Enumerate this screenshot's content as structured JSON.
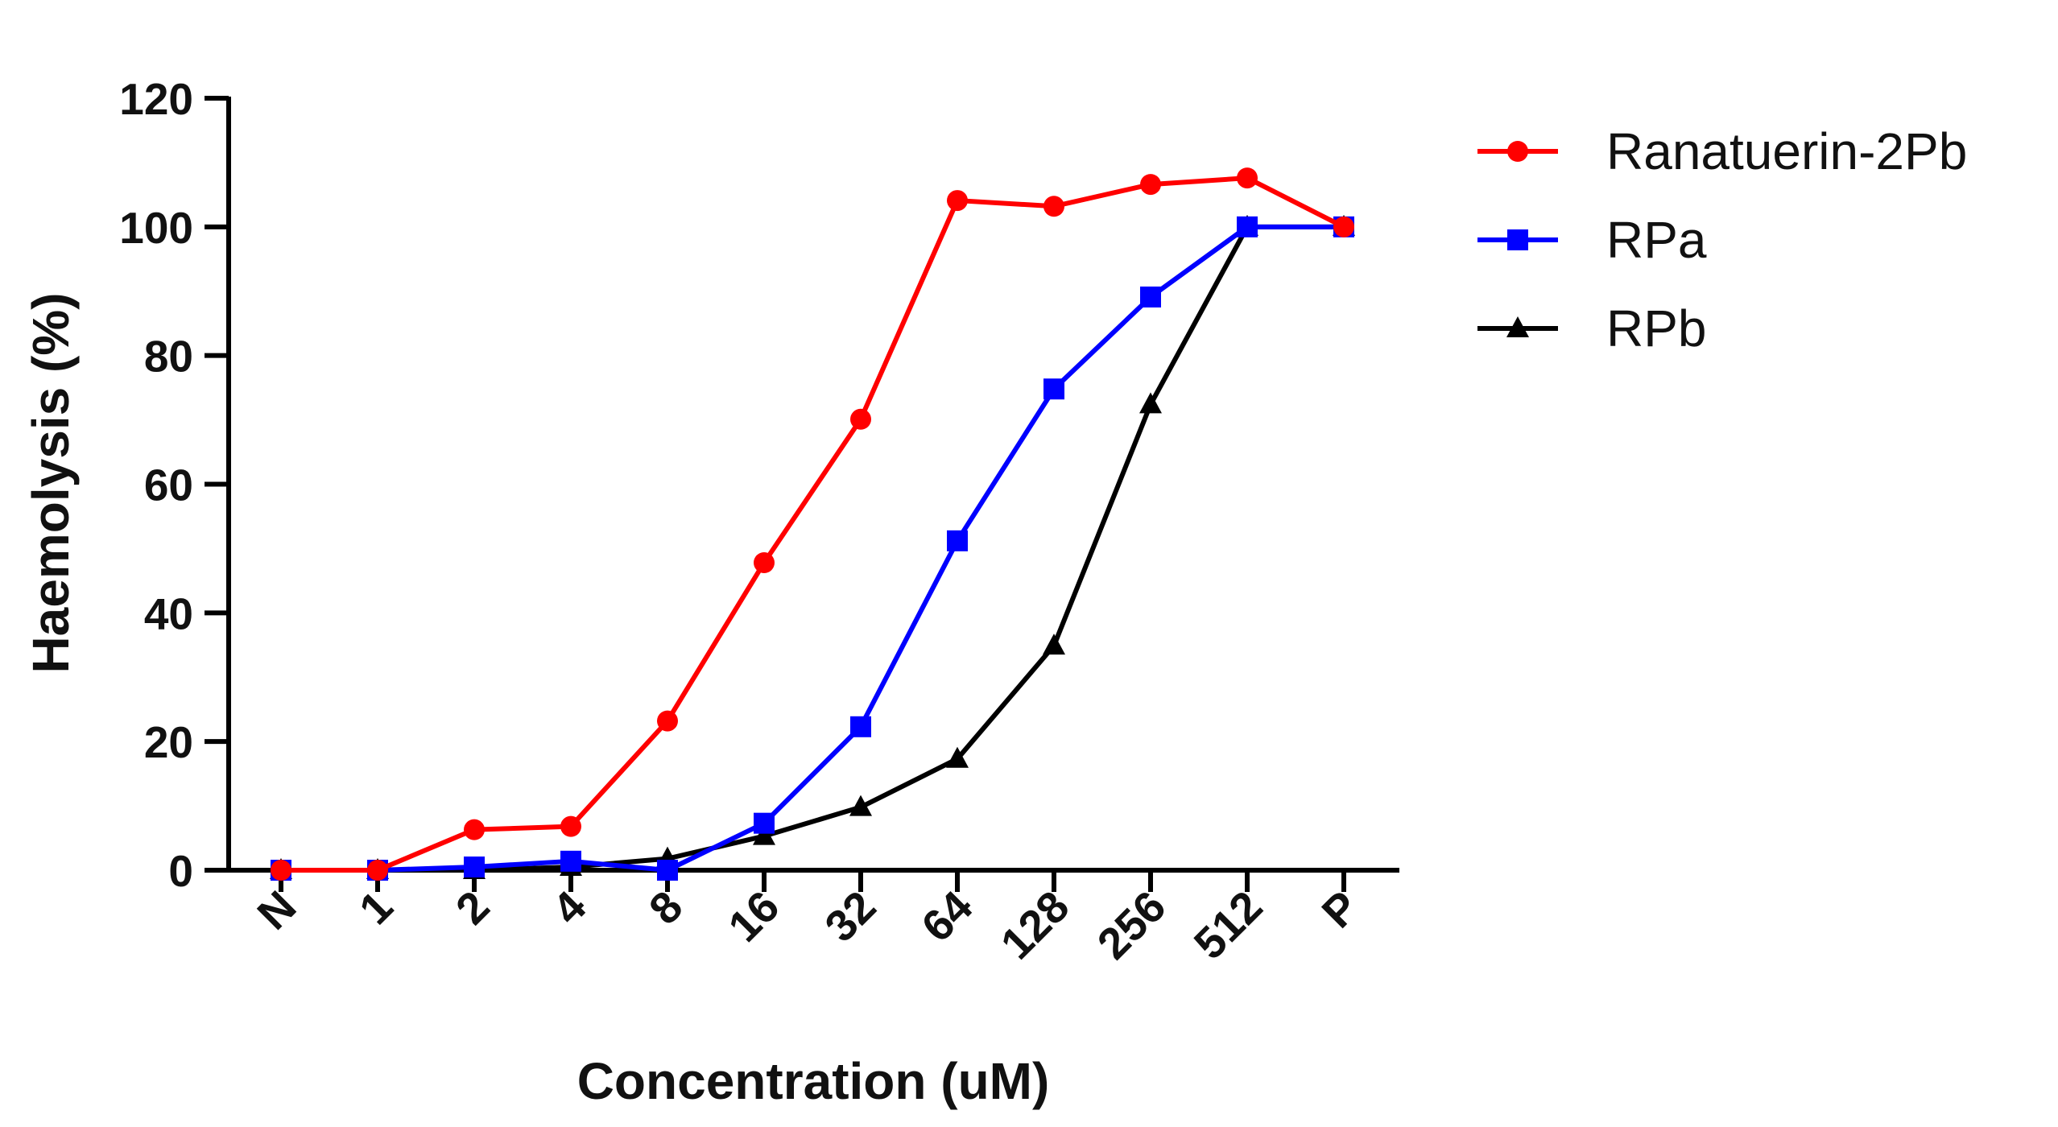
{
  "chart_data": {
    "type": "line",
    "title": "",
    "xlabel": "Concentration (uM)",
    "ylabel": "Haemolysis (%)",
    "categories": [
      "N",
      "1",
      "2",
      "4",
      "8",
      "16",
      "32",
      "64",
      "128",
      "256",
      "512",
      "P"
    ],
    "ylim": [
      0,
      120
    ],
    "yticks": [
      0,
      20,
      40,
      60,
      80,
      100,
      120
    ],
    "grid": false,
    "legend_position": "top-right",
    "series": [
      {
        "name": "Ranatuerin-2Pb",
        "color": "#ff0000",
        "marker": "circle",
        "values": [
          0,
          0,
          6.3,
          6.8,
          23.2,
          47.8,
          70.1,
          104.1,
          103.2,
          106.6,
          107.6,
          100
        ]
      },
      {
        "name": "RPa",
        "color": "#0000ff",
        "marker": "square",
        "values": [
          0,
          0,
          0.5,
          1.4,
          0,
          7.3,
          22.3,
          51.2,
          74.8,
          89.1,
          100,
          100
        ]
      },
      {
        "name": "RPb",
        "color": "#000000",
        "marker": "triangle",
        "values": [
          0,
          0,
          0,
          0.5,
          1.8,
          5.3,
          9.8,
          17.3,
          34.9,
          72.4,
          100,
          100
        ]
      }
    ]
  }
}
